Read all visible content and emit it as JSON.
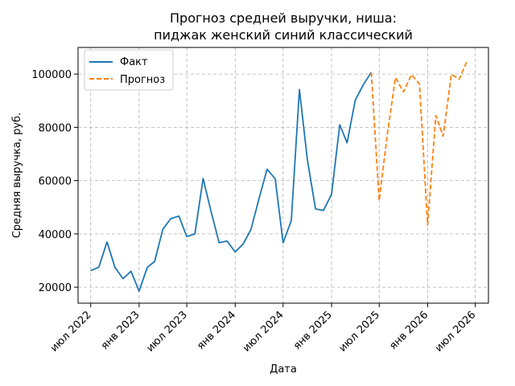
{
  "chart_data": {
    "type": "line",
    "title_lines": [
      "Прогноз средней выручки, ниша:",
      "пиджак женский синий классический"
    ],
    "xlabel": "Дата",
    "ylabel": "Средняя выручка, руб.",
    "xlim": [
      "2022-05-14",
      "2026-08-20"
    ],
    "ylim": [
      14000,
      110000
    ],
    "grid": true,
    "legend_position": "top-left",
    "x_ticks": [
      {
        "label": "июл 2022",
        "date": "2022-07-01"
      },
      {
        "label": "янв 2023",
        "date": "2023-01-01"
      },
      {
        "label": "июл 2023",
        "date": "2023-07-01"
      },
      {
        "label": "янв 2024",
        "date": "2024-01-01"
      },
      {
        "label": "июл 2024",
        "date": "2024-07-01"
      },
      {
        "label": "янв 2025",
        "date": "2025-01-01"
      },
      {
        "label": "июл 2025",
        "date": "2025-07-01"
      },
      {
        "label": "янв 2026",
        "date": "2026-01-01"
      },
      {
        "label": "июл 2026",
        "date": "2026-07-01"
      }
    ],
    "y_ticks": [
      {
        "label": "20000",
        "value": 20000
      },
      {
        "label": "40000",
        "value": 40000
      },
      {
        "label": "60000",
        "value": 60000
      },
      {
        "label": "80000",
        "value": 80000
      },
      {
        "label": "100000",
        "value": 100000
      }
    ],
    "series": [
      {
        "name": "Факт",
        "color": "#1f77b4",
        "dashed": false,
        "x": [
          "2022-07-01",
          "2022-08-01",
          "2022-09-01",
          "2022-10-01",
          "2022-11-01",
          "2022-12-01",
          "2023-01-01",
          "2023-02-01",
          "2023-03-01",
          "2023-04-01",
          "2023-05-01",
          "2023-06-01",
          "2023-07-01",
          "2023-08-01",
          "2023-09-01",
          "2023-10-01",
          "2023-11-01",
          "2023-12-01",
          "2024-01-01",
          "2024-02-01",
          "2024-03-01",
          "2024-04-01",
          "2024-05-01",
          "2024-06-01",
          "2024-07-01",
          "2024-08-01",
          "2024-09-01",
          "2024-10-01",
          "2024-11-01",
          "2024-12-01",
          "2025-01-01",
          "2025-02-01",
          "2025-03-01",
          "2025-04-01",
          "2025-05-01",
          "2025-06-01"
        ],
        "y": [
          26200,
          27500,
          37000,
          27500,
          23200,
          26000,
          18500,
          27400,
          29700,
          41700,
          45700,
          46700,
          39000,
          40000,
          60800,
          48500,
          36700,
          37300,
          33200,
          36300,
          41700,
          53500,
          64300,
          60700,
          36700,
          45000,
          94200,
          68000,
          49400,
          48800,
          54800,
          81000,
          74200,
          90200,
          95900,
          100700
        ]
      },
      {
        "name": "Прогноз",
        "color": "#ff7f0e",
        "dashed": true,
        "x": [
          "2025-06-01",
          "2025-07-01",
          "2025-08-01",
          "2025-09-01",
          "2025-10-01",
          "2025-11-01",
          "2025-12-01",
          "2026-01-01",
          "2026-02-01",
          "2026-03-01",
          "2026-04-01",
          "2026-05-01",
          "2026-06-01"
        ],
        "y": [
          100700,
          52500,
          77500,
          98700,
          93300,
          99800,
          96200,
          43300,
          84400,
          76700,
          99900,
          98100,
          105200
        ]
      }
    ]
  }
}
